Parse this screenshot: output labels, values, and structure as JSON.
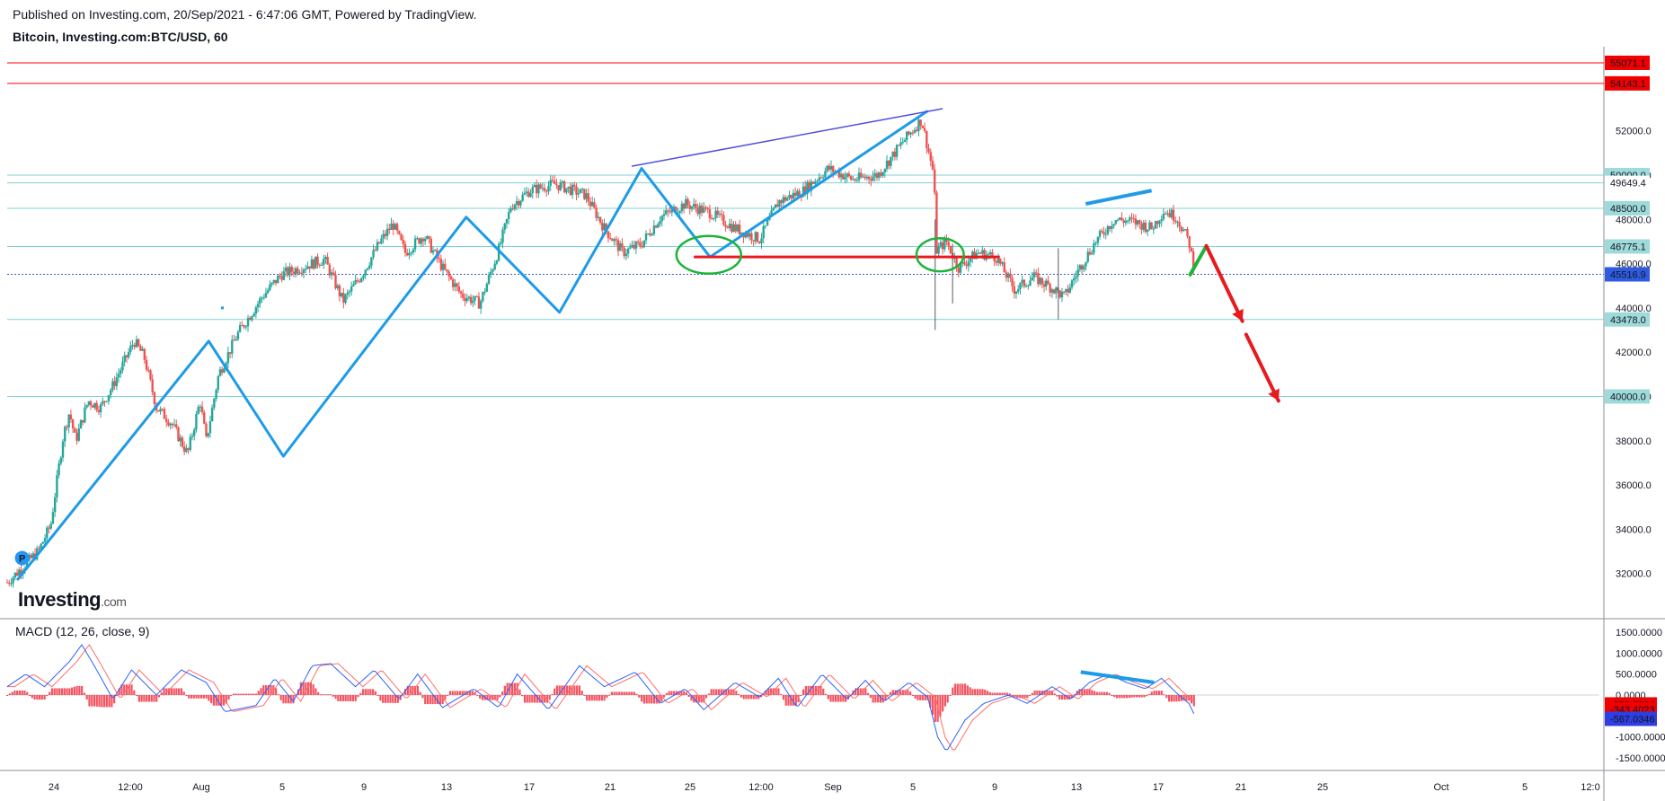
{
  "header": {
    "published": "Published on Investing.com, 20/Sep/2021 - 6:47:06 GMT, Powered by TradingView.",
    "title": "Bitcoin, Investing.com:BTC/USD, 60"
  },
  "logo": {
    "main": "Investing",
    "suffix": ".com"
  },
  "colors": {
    "up": "#26a69a",
    "down": "#ef5350",
    "resistance": "#ff0000",
    "level": "#7fd3d3",
    "pattern": "#1e9be8",
    "trend": "#5050e0",
    "neckline": "#e8191f",
    "circle": "#1db33a",
    "macd": "#2962ff",
    "signal": "#ff6d6d"
  },
  "chart_data": [
    {
      "type": "candlestick",
      "title": "Bitcoin, Investing.com:BTC/USD, 60",
      "x_tick_labels": [
        "24",
        "12:00",
        "Aug",
        "5",
        "9",
        "13",
        "17",
        "21",
        "25",
        "12:00",
        "Sep",
        "5",
        "9",
        "13",
        "17",
        "21",
        "25",
        "Oct",
        "5",
        "12:0"
      ],
      "ylim": [
        30000,
        55800
      ],
      "y_ticks": [
        32000,
        34000,
        36000,
        38000,
        40000,
        42000,
        44000,
        46000,
        48000,
        50000,
        52000
      ],
      "y_tick_labels": [
        "32000.0",
        "34000.0",
        "36000.0",
        "38000.0",
        "40000.0",
        "42000.0",
        "44000.0",
        "46000.0",
        "48000.0",
        "50000.0",
        "52000.0"
      ],
      "price_labels": [
        {
          "text": "55071.1",
          "value": 55071.1,
          "style": "red"
        },
        {
          "text": "54143.1",
          "value": 54143.1,
          "style": "red"
        },
        {
          "text": "50000.0",
          "value": 50000.0,
          "style": "teal"
        },
        {
          "text": "49649.4",
          "value": 49649.4,
          "style": "white"
        },
        {
          "text": "48500.0",
          "value": 48500.0,
          "style": "teal"
        },
        {
          "text": "46775.1",
          "value": 46775.1,
          "style": "teal"
        },
        {
          "text": "45516.9",
          "value": 45516.9,
          "style": "blue"
        },
        {
          "text": "43478.0",
          "value": 43478.0,
          "style": "teal"
        },
        {
          "text": "40000.0",
          "value": 40000.0,
          "style": "teal"
        }
      ],
      "horizontal_levels": [
        {
          "value": 55071.1,
          "style": "resistance"
        },
        {
          "value": 54143.1,
          "style": "resistance"
        },
        {
          "value": 50000.0,
          "style": "level"
        },
        {
          "value": 49649.4,
          "style": "level"
        },
        {
          "value": 48500.0,
          "style": "level"
        },
        {
          "value": 46775.1,
          "style": "level"
        },
        {
          "value": 45516.9,
          "style": "current"
        },
        {
          "value": 43478.0,
          "style": "level"
        },
        {
          "value": 40000.0,
          "style": "level"
        }
      ],
      "price_path": [
        {
          "t": 0.0,
          "p": 31600
        },
        {
          "t": 2.5,
          "p": 33000
        },
        {
          "t": 3.5,
          "p": 34200
        },
        {
          "t": 4.5,
          "p": 38200
        },
        {
          "t": 5.0,
          "p": 39300
        },
        {
          "t": 5.5,
          "p": 38000
        },
        {
          "t": 6.5,
          "p": 39800
        },
        {
          "t": 7.5,
          "p": 39500
        },
        {
          "t": 8.5,
          "p": 40500
        },
        {
          "t": 10.2,
          "p": 42500
        },
        {
          "t": 11.0,
          "p": 41800
        },
        {
          "t": 12.0,
          "p": 39500
        },
        {
          "t": 13.2,
          "p": 38800
        },
        {
          "t": 14.5,
          "p": 37400
        },
        {
          "t": 15.5,
          "p": 39800
        },
        {
          "t": 16.0,
          "p": 38000
        },
        {
          "t": 17.0,
          "p": 41000
        },
        {
          "t": 18.5,
          "p": 42800
        },
        {
          "t": 20.5,
          "p": 44500
        },
        {
          "t": 22.0,
          "p": 45500
        },
        {
          "t": 23.5,
          "p": 45800
        },
        {
          "t": 25.5,
          "p": 46200
        },
        {
          "t": 27.0,
          "p": 44300
        },
        {
          "t": 28.5,
          "p": 45500
        },
        {
          "t": 30.0,
          "p": 47000
        },
        {
          "t": 31.0,
          "p": 47800
        },
        {
          "t": 32.0,
          "p": 46500
        },
        {
          "t": 33.5,
          "p": 47300
        },
        {
          "t": 35.0,
          "p": 45800
        },
        {
          "t": 36.5,
          "p": 44600
        },
        {
          "t": 38.0,
          "p": 44200
        },
        {
          "t": 39.5,
          "p": 46600
        },
        {
          "t": 40.5,
          "p": 48600
        },
        {
          "t": 42.0,
          "p": 49300
        },
        {
          "t": 44.0,
          "p": 49600
        },
        {
          "t": 45.0,
          "p": 49400
        },
        {
          "t": 46.5,
          "p": 49100
        },
        {
          "t": 48.0,
          "p": 47600
        },
        {
          "t": 49.5,
          "p": 46500
        },
        {
          "t": 51.0,
          "p": 46900
        },
        {
          "t": 52.5,
          "p": 48100
        },
        {
          "t": 54.5,
          "p": 48700
        },
        {
          "t": 56.5,
          "p": 48300
        },
        {
          "t": 58.5,
          "p": 47600
        },
        {
          "t": 60.5,
          "p": 47100
        },
        {
          "t": 62.0,
          "p": 48800
        },
        {
          "t": 64.0,
          "p": 49300
        },
        {
          "t": 66.0,
          "p": 50300
        },
        {
          "t": 68.0,
          "p": 49800
        },
        {
          "t": 70.0,
          "p": 50000
        },
        {
          "t": 72.0,
          "p": 51500
        },
        {
          "t": 73.5,
          "p": 52500
        },
        {
          "t": 74.5,
          "p": 50000
        },
        {
          "t": 74.7,
          "p": 46600
        },
        {
          "t": 75.5,
          "p": 47000
        },
        {
          "t": 76.5,
          "p": 45800
        },
        {
          "t": 78.0,
          "p": 46500
        },
        {
          "t": 79.5,
          "p": 46300
        },
        {
          "t": 81.0,
          "p": 44800
        },
        {
          "t": 82.5,
          "p": 45400
        },
        {
          "t": 84.0,
          "p": 44900
        },
        {
          "t": 85.0,
          "p": 44500
        },
        {
          "t": 86.0,
          "p": 45600
        },
        {
          "t": 87.5,
          "p": 47000
        },
        {
          "t": 89.0,
          "p": 48000
        },
        {
          "t": 90.5,
          "p": 47900
        },
        {
          "t": 92.0,
          "p": 47600
        },
        {
          "t": 93.0,
          "p": 48400
        },
        {
          "t": 94.0,
          "p": 48100
        },
        {
          "t": 95.0,
          "p": 47000
        },
        {
          "t": 95.5,
          "p": 45500
        }
      ],
      "spikes": [
        {
          "t": 74.6,
          "low": 43000,
          "high": 48000
        },
        {
          "t": 76.0,
          "low": 44200,
          "high": 46900
        },
        {
          "t": 84.5,
          "low": 43478,
          "high": 46700
        }
      ],
      "drawings": [
        {
          "kind": "zigzag",
          "color": "pattern",
          "points": [
            [
              0.8,
              31700
            ],
            [
              16.2,
              42500
            ],
            [
              22.2,
              37300
            ],
            [
              36.9,
              48100
            ],
            [
              44.4,
              43800
            ],
            [
              51.0,
              50300
            ],
            [
              56.5,
              46300
            ],
            [
              74.0,
              52900
            ]
          ]
        },
        {
          "kind": "trend",
          "color": "trend",
          "points": [
            [
              50.2,
              50400
            ],
            [
              75.2,
              53000
            ]
          ]
        },
        {
          "kind": "trend",
          "color": "pattern",
          "points": [
            [
              86.7,
              48700
            ],
            [
              92.0,
              49300
            ]
          ]
        },
        {
          "kind": "neckline",
          "color": "neckline",
          "points": [
            [
              55.2,
              46300
            ],
            [
              79.8,
              46300
            ]
          ]
        },
        {
          "kind": "ellipse",
          "color": "circle",
          "center": [
            56.4,
            46400
          ],
          "radius_t": 2.6,
          "radius_p": 850
        },
        {
          "kind": "ellipse",
          "color": "circle",
          "center": [
            75.0,
            46400
          ],
          "radius_t": 1.9,
          "radius_p": 750
        },
        {
          "kind": "arrow-up",
          "color": "circle",
          "points": [
            [
              95.1,
              45500
            ],
            [
              96.4,
              46800
            ]
          ]
        },
        {
          "kind": "arrow-down",
          "color": "neckline",
          "points": [
            [
              96.4,
              46800
            ],
            [
              99.3,
              43400
            ]
          ]
        },
        {
          "kind": "arrow-down",
          "color": "neckline",
          "points": [
            [
              99.6,
              42800
            ],
            [
              102.2,
              39800
            ]
          ]
        }
      ],
      "markers": [
        {
          "kind": "badge",
          "text": "P",
          "t": 1.2,
          "p": 32700
        },
        {
          "kind": "dot",
          "t": 17.3,
          "p": 44000
        }
      ]
    },
    {
      "type": "line",
      "title": "MACD (12, 26, close, 9)",
      "ylim": [
        -1800,
        1800
      ],
      "y_ticks": [
        1500,
        1000,
        500,
        0,
        -1000,
        -1500
      ],
      "y_tick_labels": [
        "1500.0000",
        "1000.0000",
        "500.0000",
        "0.0000",
        "-1000.0000",
        "-1500.0000"
      ],
      "value_labels": [
        {
          "text": "-223.6324",
          "value": -223.6324,
          "style": "red"
        },
        {
          "text": "-343.4023",
          "value": -343.4023,
          "style": "red"
        },
        {
          "text": "-567.0346",
          "value": -567.0346,
          "style": "blue"
        }
      ],
      "macd_path": [
        {
          "t": 0.0,
          "v": 200
        },
        {
          "t": 1.5,
          "v": 500
        },
        {
          "t": 3.0,
          "v": 200
        },
        {
          "t": 5.0,
          "v": 800
        },
        {
          "t": 6.0,
          "v": 1200
        },
        {
          "t": 7.0,
          "v": 700
        },
        {
          "t": 8.5,
          "v": -100
        },
        {
          "t": 10.0,
          "v": 600
        },
        {
          "t": 12.0,
          "v": 0
        },
        {
          "t": 14.0,
          "v": 600
        },
        {
          "t": 16.0,
          "v": 300
        },
        {
          "t": 17.5,
          "v": -400
        },
        {
          "t": 20.0,
          "v": -250
        },
        {
          "t": 21.5,
          "v": 400
        },
        {
          "t": 23.0,
          "v": -150
        },
        {
          "t": 24.5,
          "v": 700
        },
        {
          "t": 26.0,
          "v": 750
        },
        {
          "t": 28.0,
          "v": 200
        },
        {
          "t": 29.5,
          "v": 600
        },
        {
          "t": 31.5,
          "v": -100
        },
        {
          "t": 33.0,
          "v": 500
        },
        {
          "t": 35.0,
          "v": -300
        },
        {
          "t": 37.5,
          "v": 150
        },
        {
          "t": 39.5,
          "v": -300
        },
        {
          "t": 41.0,
          "v": 500
        },
        {
          "t": 43.5,
          "v": -350
        },
        {
          "t": 46.0,
          "v": 700
        },
        {
          "t": 48.0,
          "v": 200
        },
        {
          "t": 50.5,
          "v": 550
        },
        {
          "t": 52.5,
          "v": -200
        },
        {
          "t": 54.5,
          "v": 150
        },
        {
          "t": 56.0,
          "v": -350
        },
        {
          "t": 58.5,
          "v": 300
        },
        {
          "t": 60.5,
          "v": -50
        },
        {
          "t": 62.0,
          "v": 400
        },
        {
          "t": 63.5,
          "v": -300
        },
        {
          "t": 65.5,
          "v": 500
        },
        {
          "t": 67.5,
          "v": -100
        },
        {
          "t": 69.0,
          "v": 350
        },
        {
          "t": 70.5,
          "v": -150
        },
        {
          "t": 72.5,
          "v": 300
        },
        {
          "t": 74.0,
          "v": -50
        },
        {
          "t": 74.8,
          "v": -1000
        },
        {
          "t": 75.5,
          "v": -1350
        },
        {
          "t": 77.0,
          "v": -600
        },
        {
          "t": 78.5,
          "v": -200
        },
        {
          "t": 80.5,
          "v": 0
        },
        {
          "t": 82.0,
          "v": -200
        },
        {
          "t": 84.0,
          "v": 200
        },
        {
          "t": 85.5,
          "v": -100
        },
        {
          "t": 87.0,
          "v": 300
        },
        {
          "t": 88.5,
          "v": 500
        },
        {
          "t": 90.0,
          "v": 300
        },
        {
          "t": 91.5,
          "v": 150
        },
        {
          "t": 92.8,
          "v": 400
        },
        {
          "t": 94.0,
          "v": 50
        },
        {
          "t": 95.0,
          "v": -200
        },
        {
          "t": 95.6,
          "v": -567
        }
      ],
      "divergence_line": [
        [
          86.3,
          550
        ],
        [
          92.2,
          300
        ]
      ]
    }
  ]
}
